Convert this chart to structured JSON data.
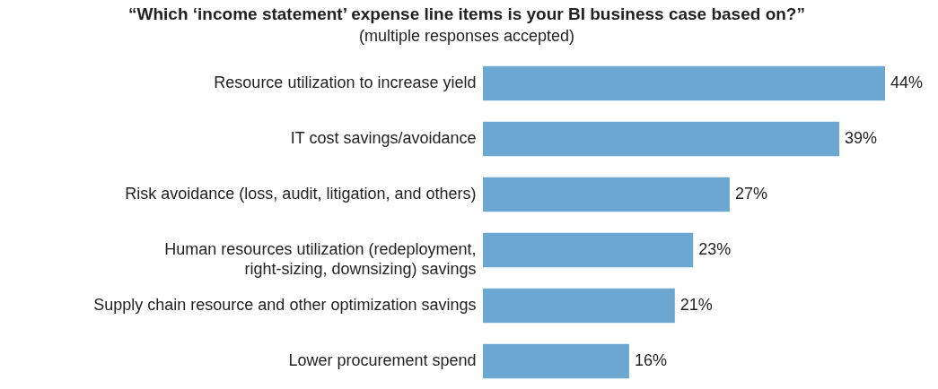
{
  "chart_data": {
    "type": "bar",
    "orientation": "horizontal",
    "title": "“Which ‘income statement’ expense line items is your BI business case based on?”",
    "subtitle": "(multiple responses accepted)",
    "categories": [
      "Resource utilization to increase yield",
      "IT cost savings/avoidance",
      "Risk avoidance (loss, audit, litigation, and others)",
      "Human resources utilization (redeployment, right-sizing, downsizing) savings",
      "Supply chain resource and other optimization savings",
      "Lower procurement spend"
    ],
    "values": [
      44,
      39,
      27,
      23,
      21,
      16
    ],
    "value_labels": [
      "44%",
      "39%",
      "27%",
      "23%",
      "21%",
      "16%"
    ],
    "color": "#6ba7d1"
  }
}
